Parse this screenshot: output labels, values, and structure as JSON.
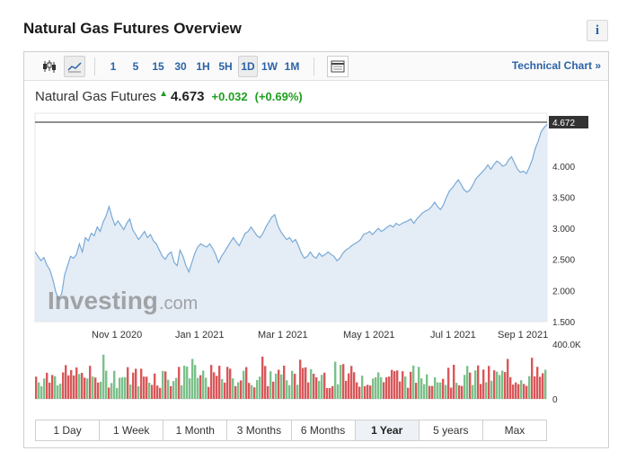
{
  "page": {
    "title": "Natural Gas Futures Overview",
    "info_label": "i"
  },
  "toolbar": {
    "intervals": [
      "1",
      "5",
      "15",
      "30",
      "1H",
      "5H",
      "1D",
      "1W",
      "1M"
    ],
    "selected_interval": "1D",
    "technical_chart_label": "Technical Chart »"
  },
  "quote": {
    "name": "Natural Gas Futures",
    "arrow": "▲",
    "last": "4.673",
    "change": "+0.032",
    "change_pct": "(+0.69%)"
  },
  "watermark": {
    "brand": "Investing",
    "suffix": ".com"
  },
  "ranges": [
    "1 Day",
    "1 Week",
    "1 Month",
    "3 Months",
    "6 Months",
    "1 Year",
    "5 years",
    "Max"
  ],
  "selected_range": "1 Year",
  "colors": {
    "accent": "#2a63a8",
    "up": "#1e9e1e",
    "line": "#7aaad6",
    "area": "#e4ecf6",
    "vol_up": "#7cc08a",
    "vol_down": "#d9575a"
  },
  "chart_data": {
    "type": "area",
    "title": "",
    "xlabel": "",
    "ylabel": "",
    "x_ticks": [
      "Nov 1 2020",
      "Jan 1 2021",
      "Mar 1 2021",
      "May 1 2021",
      "Jul 1 2021",
      "Sep 1 2021"
    ],
    "y_ticks": [
      "4.000",
      "3.500",
      "3.000",
      "2.500",
      "2.000",
      "1.500"
    ],
    "ylim": [
      1.5,
      4.85
    ],
    "last_price_label": "4.672",
    "series": [
      {
        "values": [
          2.62,
          2.55,
          2.48,
          2.53,
          2.41,
          2.33,
          2.18,
          1.98,
          1.86,
          1.95,
          2.25,
          2.4,
          2.55,
          2.52,
          2.58,
          2.75,
          2.62,
          2.85,
          2.8,
          2.92,
          2.88,
          3.02,
          2.95,
          3.1,
          3.2,
          3.35,
          3.18,
          3.05,
          3.12,
          3.05,
          2.98,
          3.08,
          3.15,
          2.98,
          2.9,
          2.82,
          2.88,
          2.95,
          2.85,
          2.9,
          2.8,
          2.75,
          2.65,
          2.55,
          2.5,
          2.58,
          2.62,
          2.45,
          2.4,
          2.65,
          2.55,
          2.4,
          2.3,
          2.45,
          2.6,
          2.7,
          2.75,
          2.72,
          2.7,
          2.75,
          2.68,
          2.58,
          2.45,
          2.55,
          2.62,
          2.7,
          2.78,
          2.85,
          2.78,
          2.72,
          2.82,
          2.92,
          2.95,
          3.02,
          2.95,
          2.88,
          2.85,
          2.92,
          3.02,
          3.1,
          3.18,
          3.22,
          3.05,
          2.95,
          2.88,
          2.82,
          2.85,
          2.78,
          2.82,
          2.72,
          2.6,
          2.52,
          2.55,
          2.62,
          2.55,
          2.52,
          2.6,
          2.55,
          2.58,
          2.62,
          2.58,
          2.55,
          2.48,
          2.52,
          2.6,
          2.65,
          2.68,
          2.72,
          2.75,
          2.78,
          2.82,
          2.9,
          2.92,
          2.95,
          2.9,
          2.95,
          3.0,
          2.95,
          2.98,
          3.02,
          3.05,
          3.02,
          3.08,
          3.05,
          3.08,
          3.1,
          3.12,
          3.15,
          3.08,
          3.15,
          3.2,
          3.25,
          3.28,
          3.3,
          3.35,
          3.42,
          3.35,
          3.3,
          3.38,
          3.5,
          3.6,
          3.65,
          3.72,
          3.78,
          3.7,
          3.62,
          3.58,
          3.62,
          3.7,
          3.8,
          3.85,
          3.9,
          3.95,
          4.02,
          3.95,
          4.02,
          4.08,
          4.05,
          4.0,
          4.02,
          4.1,
          4.15,
          4.05,
          3.95,
          3.9,
          3.92,
          3.88,
          3.98,
          4.1,
          4.28,
          4.4,
          4.55,
          4.62,
          4.67
        ]
      }
    ],
    "volume_axis_ticks": [
      "400.0K",
      "0"
    ]
  }
}
